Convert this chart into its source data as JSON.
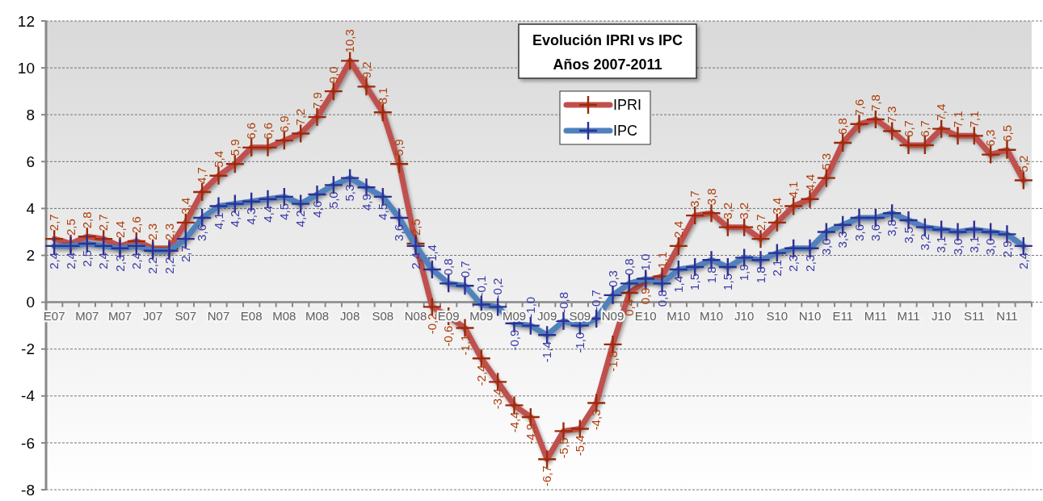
{
  "chart_data": {
    "type": "line",
    "title": "Evolución IPRI vs IPC",
    "subtitle": "Años 2007-2011",
    "categories": [
      "E07",
      null,
      "M07",
      null,
      "M07",
      null,
      "J07",
      null,
      "S07",
      null,
      "N07",
      null,
      "E08",
      null,
      "M08",
      null,
      "M08",
      null,
      "J08",
      null,
      "S08",
      null,
      "N08",
      null,
      "E09",
      null,
      "M09",
      null,
      "M09",
      null,
      "J09",
      null,
      "S09",
      null,
      "N09",
      null,
      "E10",
      null,
      "M10",
      null,
      "M10",
      null,
      "J10",
      null,
      "S10",
      null,
      "N10",
      null,
      "E11",
      null,
      "M11",
      null,
      "M11",
      null,
      "J10",
      null,
      "S11",
      null,
      "N11",
      null
    ],
    "series": [
      {
        "name": "IPRI",
        "color": "#c0504d",
        "values": [
          2.7,
          2.5,
          2.8,
          2.7,
          2.4,
          2.6,
          2.3,
          2.3,
          3.4,
          4.7,
          5.4,
          5.9,
          6.6,
          6.6,
          6.9,
          7.2,
          7.9,
          9.0,
          10.3,
          9.2,
          8.1,
          5.9,
          2.5,
          -0.2,
          -0.6,
          -1.1,
          -2.4,
          -3.4,
          -4.4,
          -4.9,
          -6.7,
          -5.5,
          -5.4,
          -4.3,
          -1.8,
          0.4,
          0.9,
          1.1,
          2.4,
          3.7,
          3.8,
          3.2,
          3.2,
          2.7,
          3.4,
          4.1,
          4.4,
          5.3,
          6.8,
          7.6,
          7.8,
          7.3,
          6.7,
          6.7,
          7.4,
          7.1,
          7.1,
          6.3,
          6.5,
          5.2
        ],
        "value_labels": [
          "2,7",
          "2,5",
          "2,8",
          "2,7",
          "2,4",
          "2,6",
          "2,3",
          "2,3",
          "3,4",
          "4,7",
          "5,4",
          "5,9",
          "6,6",
          "6,6",
          "6,9",
          "7,2",
          "7,9",
          "9,0",
          "10,3",
          "9,2",
          "8,1",
          "5,9",
          "2,5",
          "-0,2",
          "-0,6",
          "-1,1",
          "-2,4",
          "-3,4",
          "-4,4",
          "-4,9",
          "-6,7",
          "-5,5",
          "-5,4",
          "-4,3",
          "-1,8",
          "0,4",
          "0,9",
          "1,1",
          "2,4",
          "3,7",
          "3,8",
          "3,2",
          "3,2",
          "2,7",
          "3,4",
          "4,1",
          "4,4",
          "5,3",
          "6,8",
          "7,6",
          "7,8",
          "7,3",
          "6,7",
          "6,7",
          "7,4",
          "7,1",
          "7,1",
          "6,3",
          "6,5",
          "5,2"
        ]
      },
      {
        "name": "IPC",
        "color": "#4f81bd",
        "values": [
          2.4,
          2.4,
          2.5,
          2.4,
          2.3,
          2.4,
          2.2,
          2.2,
          2.7,
          3.6,
          4.1,
          4.2,
          4.3,
          4.4,
          4.5,
          4.2,
          4.6,
          5.0,
          5.3,
          4.9,
          4.5,
          3.6,
          2.4,
          1.4,
          0.8,
          0.7,
          -0.1,
          -0.2,
          -0.9,
          -1.0,
          -1.4,
          -0.8,
          -1.0,
          -0.7,
          0.3,
          0.8,
          1.0,
          0.8,
          1.4,
          1.5,
          1.8,
          1.5,
          1.9,
          1.8,
          2.1,
          2.3,
          2.3,
          3.0,
          3.3,
          3.6,
          3.6,
          3.8,
          3.5,
          3.2,
          3.1,
          3.0,
          3.1,
          3.0,
          2.9,
          2.4
        ],
        "value_labels": [
          "2,4",
          "2,4",
          "2,5",
          "2,4",
          "2,3",
          "2,4",
          "2,2",
          "2,2",
          "2,7",
          "3,6",
          "4,1",
          "4,2",
          "4,3",
          "4,4",
          "4,5",
          "4,2",
          "4,6",
          "5,0",
          "5,3",
          "4,9",
          "4,5",
          "3,6",
          "2,4",
          "1,4",
          "0,8",
          "0,7",
          "-0,1",
          "-0,2",
          "-0,9",
          "-1,0",
          "-1,4",
          "-0,8",
          "-1,0",
          "-0,7",
          "0,3",
          "0,8",
          "1,0",
          "0,8",
          "1,4",
          "1,5",
          "1,8",
          "1,5",
          "1,9",
          "1,8",
          "2,1",
          "2,3",
          "2,3",
          "3,0",
          "3,3",
          "3,6",
          "3,6",
          "3,8",
          "3,5",
          "3,2",
          "3,1",
          "3,0",
          "3,1",
          "3,0",
          "2,9",
          "2,4"
        ]
      }
    ],
    "ylim": [
      -8,
      12
    ],
    "yticks": [
      -8,
      -6,
      -4,
      -2,
      0,
      2,
      4,
      6,
      8,
      10,
      12
    ],
    "grid": "y",
    "legend": "top",
    "marker": "cross",
    "line_style": "solid"
  }
}
